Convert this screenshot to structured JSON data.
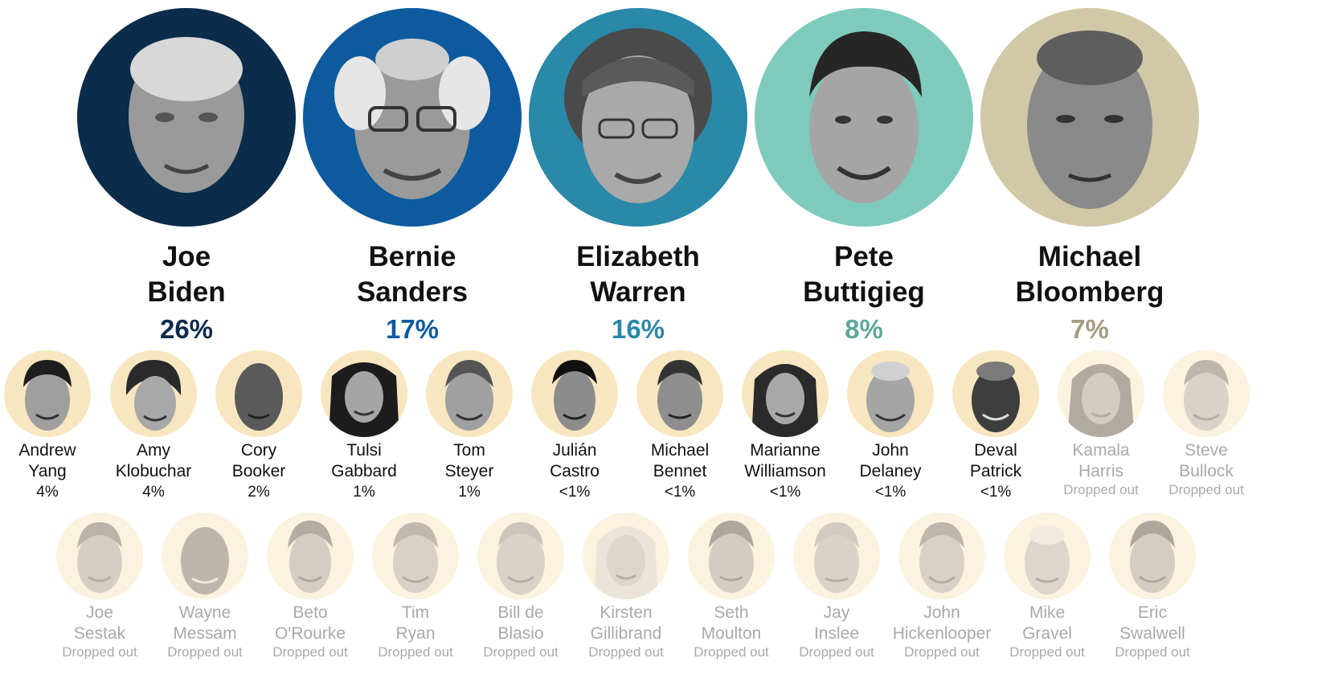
{
  "leaders": [
    {
      "first": "Joe",
      "last": "Biden",
      "pct": "26%",
      "color": "#0b2c4a",
      "pct_color": "#0b2c4a"
    },
    {
      "first": "Bernie",
      "last": "Sanders",
      "pct": "17%",
      "color": "#0d5a9e",
      "pct_color": "#0d5a9e"
    },
    {
      "first": "Elizabeth",
      "last": "Warren",
      "pct": "16%",
      "color": "#2a88a8",
      "pct_color": "#2a88a8"
    },
    {
      "first": "Pete",
      "last": "Buttigieg",
      "pct": "8%",
      "color": "#7ecbbd",
      "pct_color": "#5fa89a"
    },
    {
      "first": "Michael",
      "last": "Bloomberg",
      "pct": "7%",
      "color": "#d1c8a8",
      "pct_color": "#a59b80"
    }
  ],
  "candidates": [
    {
      "first": "Andrew",
      "last": "Yang",
      "pct": "4%"
    },
    {
      "first": "Amy",
      "last": "Klobuchar",
      "pct": "4%"
    },
    {
      "first": "Cory",
      "last": "Booker",
      "pct": "2%"
    },
    {
      "first": "Tulsi",
      "last": "Gabbard",
      "pct": "1%"
    },
    {
      "first": "Tom",
      "last": "Steyer",
      "pct": "1%"
    },
    {
      "first": "Julián",
      "last": "Castro",
      "pct": "<1%"
    },
    {
      "first": "Michael",
      "last": "Bennet",
      "pct": "<1%"
    },
    {
      "first": "Marianne",
      "last": "Williamson",
      "pct": "<1%"
    },
    {
      "first": "John",
      "last": "Delaney",
      "pct": "<1%"
    },
    {
      "first": "Deval",
      "last": "Patrick",
      "pct": "<1%"
    },
    {
      "first": "Kamala",
      "last": "Harris",
      "pct": "Dropped out"
    },
    {
      "first": "Steve",
      "last": "Bullock",
      "pct": "Dropped out"
    }
  ],
  "dropped": [
    {
      "first": "Joe",
      "last": "Sestak",
      "pct": "Dropped out"
    },
    {
      "first": "Wayne",
      "last": "Messam",
      "pct": "Dropped out"
    },
    {
      "first": "Beto",
      "last": "O'Rourke",
      "pct": "Dropped out"
    },
    {
      "first": "Tim",
      "last": "Ryan",
      "pct": "Dropped out"
    },
    {
      "first": "Bill de",
      "last": "Blasio",
      "pct": "Dropped out"
    },
    {
      "first": "Kirsten",
      "last": "Gillibrand",
      "pct": "Dropped out"
    },
    {
      "first": "Seth",
      "last": "Moulton",
      "pct": "Dropped out"
    },
    {
      "first": "Jay",
      "last": "Inslee",
      "pct": "Dropped out"
    },
    {
      "first": "John",
      "last": "Hickenlooper",
      "pct": "Dropped out"
    },
    {
      "first": "Mike",
      "last": "Gravel",
      "pct": "Dropped out"
    },
    {
      "first": "Eric",
      "last": "Swalwell",
      "pct": "Dropped out"
    }
  ]
}
